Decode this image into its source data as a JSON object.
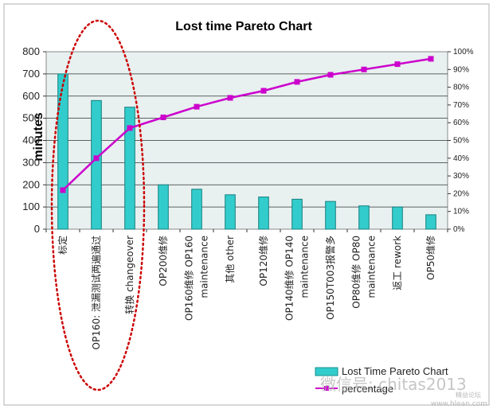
{
  "chart_data": {
    "type": "bar",
    "title": "Lost time Pareto Chart",
    "ylabel": "minutes",
    "ylim": [
      0,
      800
    ],
    "y_ticks": [
      "0",
      "100",
      "200",
      "300",
      "400",
      "500",
      "600",
      "700",
      "800"
    ],
    "y2lim": [
      0,
      100
    ],
    "y2_ticks": [
      "0%",
      "10%",
      "20%",
      "30%",
      "40%",
      "50%",
      "60%",
      "70%",
      "80%",
      "90%",
      "100%"
    ],
    "categories": [
      [
        "标定"
      ],
      [
        "OP160: 泄漏测试两遍通过"
      ],
      [
        "转换 changeover"
      ],
      [
        "OP200维修"
      ],
      [
        "OP160维修 OP160",
        "maintenance"
      ],
      [
        "其他 other"
      ],
      [
        "OP120维修"
      ],
      [
        "OP140维修 OP140",
        "maintenance"
      ],
      [
        "OP150T003报警多"
      ],
      [
        "OP80维修 OP80",
        "maintenance"
      ],
      [
        "返工 rework"
      ],
      [
        "OP50维修"
      ]
    ],
    "series": [
      {
        "name": "Lost Time Pareto Chart",
        "type": "bar",
        "axis": "left",
        "color": "#33cccc",
        "values": [
          700,
          580,
          550,
          200,
          180,
          155,
          145,
          135,
          125,
          105,
          100,
          65
        ]
      },
      {
        "name": "percentage",
        "type": "line",
        "axis": "right",
        "color": "#cc00cc",
        "values": [
          22,
          40,
          57,
          63,
          69,
          74,
          78,
          83,
          87,
          90,
          93,
          96
        ]
      }
    ],
    "grid": true,
    "legend_position": "bottom-right"
  },
  "watermark": {
    "main": "微信号: chitas2013",
    "small": "精益论坛",
    "url": "www.hlean.com"
  }
}
